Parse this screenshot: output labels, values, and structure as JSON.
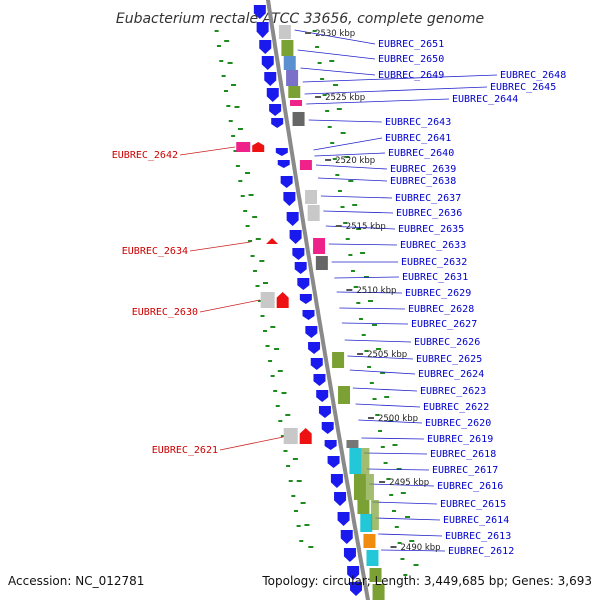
{
  "title": "Eubacterium rectale ATCC 33656, complete genome",
  "footer": {
    "accession": "Accession: NC_012781",
    "summary": "Topology: circular; Length: 3,449,685 bp; Genes: 3,693"
  },
  "colors": {
    "backbone": "#8a8a8a",
    "cds_arrow": "#1a1aee",
    "forward_label": "#0000cc",
    "reverse_label": "#cc0000",
    "reverse_gene": "#ee1111",
    "dotted_track": "#1f8a1f"
  },
  "kbp_marks": [
    {
      "label": "2530 kbp",
      "pos": 2530
    },
    {
      "label": "2525 kbp",
      "pos": 2525
    },
    {
      "label": "2520 kbp",
      "pos": 2520
    },
    {
      "label": "2515 kbp",
      "pos": 2515
    },
    {
      "label": "2510 kbp",
      "pos": 2510
    },
    {
      "label": "2505 kbp",
      "pos": 2505
    },
    {
      "label": "2500 kbp",
      "pos": 2500
    },
    {
      "label": "2495 kbp",
      "pos": 2495
    },
    {
      "label": "2490 kbp",
      "pos": 2490
    }
  ],
  "forward_labels": [
    "EUBREC_2651",
    "EUBREC_2650",
    "EUBREC_2649",
    "EUBREC_2648",
    "EUBREC_2645",
    "EUBREC_2644",
    "EUBREC_2643",
    "EUBREC_2641",
    "EUBREC_2640",
    "EUBREC_2639",
    "EUBREC_2638",
    "EUBREC_2637",
    "EUBREC_2636",
    "EUBREC_2635",
    "EUBREC_2633",
    "EUBREC_2632",
    "EUBREC_2631",
    "EUBREC_2629",
    "EUBREC_2628",
    "EUBREC_2627",
    "EUBREC_2626",
    "EUBREC_2625",
    "EUBREC_2624",
    "EUBREC_2623",
    "EUBREC_2622",
    "EUBREC_2620",
    "EUBREC_2619",
    "EUBREC_2618",
    "EUBREC_2617",
    "EUBREC_2616",
    "EUBREC_2615",
    "EUBREC_2614",
    "EUBREC_2613",
    "EUBREC_2612"
  ],
  "reverse_labels": [
    "EUBREC_2642",
    "EUBREC_2634",
    "EUBREC_2630",
    "EUBREC_2621"
  ]
}
